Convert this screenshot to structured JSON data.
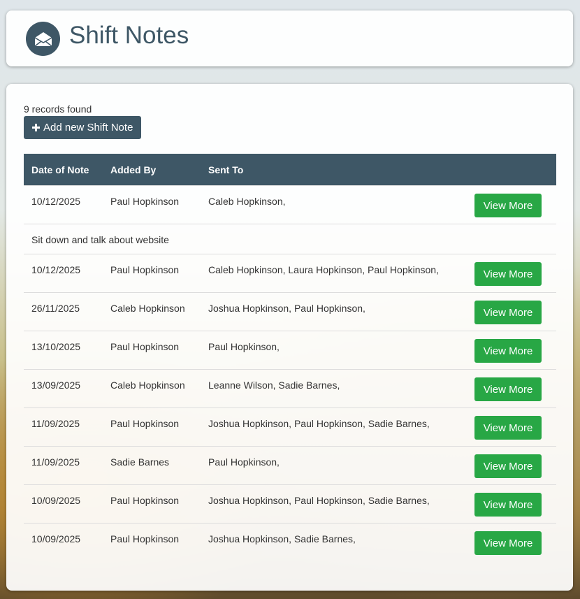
{
  "header": {
    "title": "Shift Notes",
    "icon": "envelope-open-icon"
  },
  "main": {
    "records_found": "9 records found",
    "add_button": "Add new Shift Note",
    "columns": [
      "Date of Note",
      "Added By",
      "Sent To",
      ""
    ],
    "view_more_label": "View More",
    "rows": [
      {
        "date": "10/12/2025",
        "added_by": "Paul Hopkinson",
        "sent_to": "Caleb Hopkinson,",
        "note": "Sit down and talk about website"
      },
      {
        "date": "10/12/2025",
        "added_by": "Paul Hopkinson",
        "sent_to": "Caleb Hopkinson, Laura Hopkinson, Paul Hopkinson,"
      },
      {
        "date": "26/11/2025",
        "added_by": "Caleb Hopkinson",
        "sent_to": "Joshua Hopkinson, Paul Hopkinson,"
      },
      {
        "date": "13/10/2025",
        "added_by": "Paul Hopkinson",
        "sent_to": "Paul Hopkinson,"
      },
      {
        "date": "13/09/2025",
        "added_by": "Caleb Hopkinson",
        "sent_to": "Leanne Wilson, Sadie Barnes,"
      },
      {
        "date": "11/09/2025",
        "added_by": "Paul Hopkinson",
        "sent_to": "Joshua Hopkinson, Paul Hopkinson, Sadie Barnes,"
      },
      {
        "date": "11/09/2025",
        "added_by": "Sadie Barnes",
        "sent_to": "Paul Hopkinson,"
      },
      {
        "date": "10/09/2025",
        "added_by": "Paul Hopkinson",
        "sent_to": "Joshua Hopkinson, Paul Hopkinson, Sadie Barnes,"
      },
      {
        "date": "10/09/2025",
        "added_by": "Paul Hopkinson",
        "sent_to": "Joshua Hopkinson, Sadie Barnes,"
      }
    ]
  },
  "colors": {
    "primary": "#3e5766",
    "success": "#28a745"
  }
}
